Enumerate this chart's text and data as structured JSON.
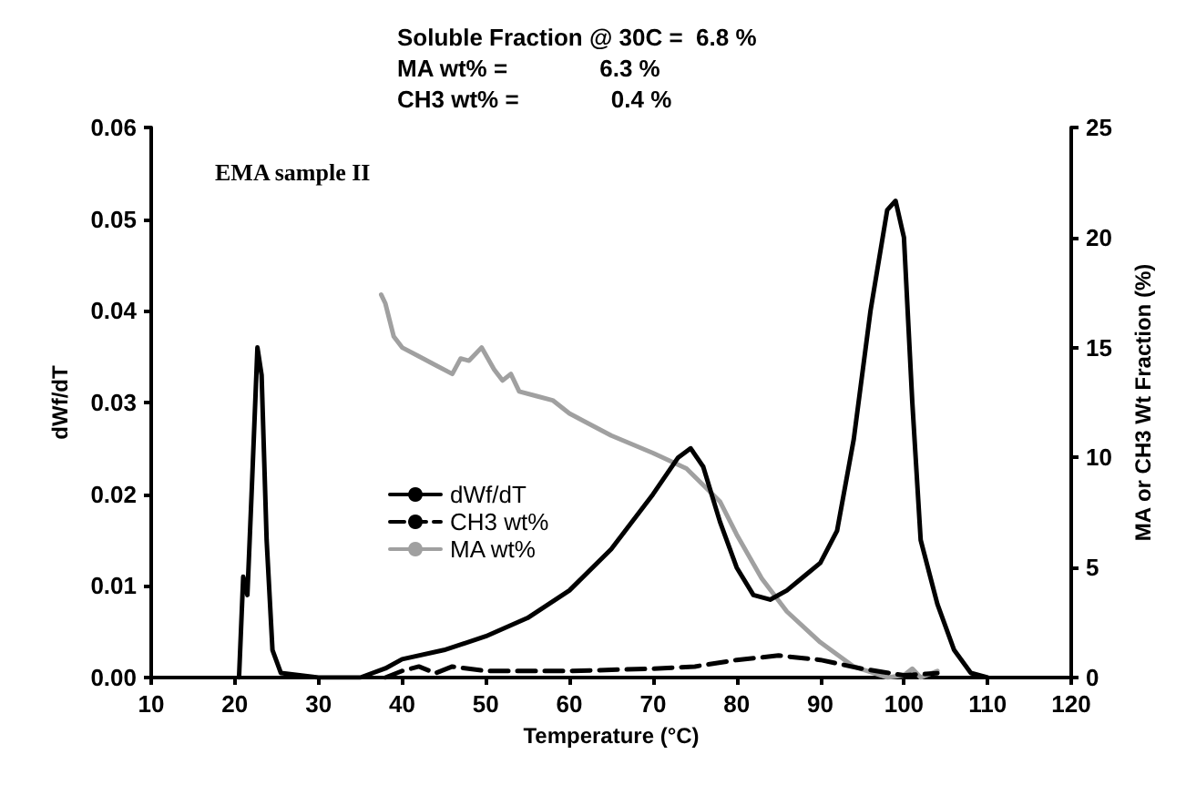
{
  "chart_data": {
    "type": "line",
    "xlabel": "Temperature (°C)",
    "ylabel": "dWf/dT",
    "y2label": "MA or CH3 Wt Fraction (%)",
    "annotations": [
      "Soluble Fraction @ 30C =  6.8 %",
      "MA wt% =              6.3 %",
      "CH3 wt% =              0.4 %",
      "EMA sample II"
    ],
    "xlim": [
      10,
      120
    ],
    "xticks": [
      10,
      20,
      30,
      40,
      50,
      60,
      70,
      80,
      90,
      100,
      110,
      120
    ],
    "ylim": [
      0,
      0.06
    ],
    "yticks": [
      {
        "value": 0,
        "label": "0.00"
      },
      {
        "value": 0.01,
        "label": "0.01"
      },
      {
        "value": 0.02,
        "label": "0.02"
      },
      {
        "value": 0.03,
        "label": "0.03"
      },
      {
        "value": 0.04,
        "label": "0.04"
      },
      {
        "value": 0.05,
        "label": "0.05"
      },
      {
        "value": 0.06,
        "label": "0.06"
      }
    ],
    "y2lim": [
      0,
      25
    ],
    "y2ticks": [
      0,
      5,
      10,
      15,
      20,
      25
    ],
    "grid": false,
    "legend": "center left",
    "marker": "none",
    "series": [
      {
        "name": "dWf/dT",
        "color": "#000000",
        "line_style": "solid",
        "x": [
          20.5,
          21,
          21.5,
          22,
          22.7,
          23.2,
          23.8,
          24.5,
          25.5,
          30,
          35,
          38,
          40,
          45,
          50,
          55,
          60,
          65,
          70,
          73,
          74.5,
          76,
          78,
          80,
          82,
          84,
          86,
          88,
          90,
          92,
          94,
          96,
          98,
          99,
          100,
          101,
          102,
          104,
          106,
          108,
          110
        ],
        "values": [
          0,
          0.011,
          0.009,
          0.02,
          0.036,
          0.033,
          0.015,
          0.003,
          0.0005,
          0,
          0,
          0.001,
          0.002,
          0.003,
          0.0045,
          0.0065,
          0.0095,
          0.014,
          0.02,
          0.024,
          0.025,
          0.023,
          0.017,
          0.012,
          0.009,
          0.0085,
          0.0095,
          0.011,
          0.0125,
          0.016,
          0.026,
          0.04,
          0.051,
          0.052,
          0.048,
          0.03,
          0.015,
          0.008,
          0.003,
          0.0005,
          0
        ]
      },
      {
        "name": "CH3 wt%",
        "color": "#000000",
        "line_style": "dashed",
        "axis": "y2",
        "x": [
          38,
          40,
          42,
          44,
          46,
          50,
          60,
          70,
          75,
          80,
          85,
          90,
          95,
          100,
          104
        ],
        "values": [
          0,
          0.3,
          0.5,
          0.2,
          0.5,
          0.3,
          0.3,
          0.4,
          0.5,
          0.8,
          1.0,
          0.8,
          0.4,
          0.1,
          0.2
        ]
      },
      {
        "name": "MA wt%",
        "color": "#a0a0a0",
        "line_style": "solid",
        "axis": "y2",
        "x": [
          37.5,
          38,
          39,
          40,
          42,
          44,
          46,
          47,
          48,
          49.5,
          51,
          52,
          53,
          54,
          56,
          58,
          60,
          62,
          65,
          70,
          74,
          78,
          80,
          83,
          86,
          90,
          94,
          98,
          100,
          101,
          102,
          104
        ],
        "values": [
          17.4,
          17,
          15.5,
          15,
          14.6,
          14.2,
          13.8,
          14.5,
          14.4,
          15,
          14,
          13.5,
          13.8,
          13,
          12.8,
          12.6,
          12,
          11.6,
          11,
          10.2,
          9.5,
          8,
          6.5,
          4.5,
          3,
          1.6,
          0.5,
          0,
          0.1,
          0.4,
          0,
          0.3
        ]
      }
    ]
  }
}
